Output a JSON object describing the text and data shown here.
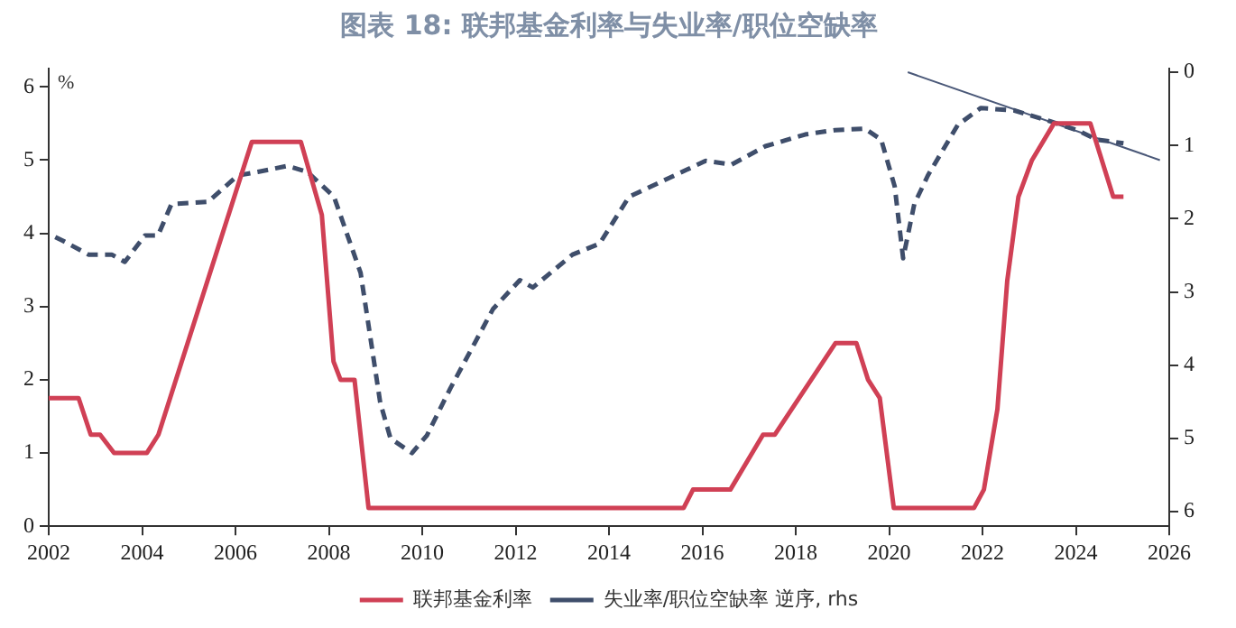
{
  "chart_data": {
    "type": "line",
    "title": "图表 18: 联邦基金利率与失业率/职位空缺率",
    "ylabel": "%",
    "xlim": [
      2002,
      2026
    ],
    "xticks": [
      2002,
      2004,
      2006,
      2008,
      2010,
      2012,
      2014,
      2016,
      2018,
      2020,
      2022,
      2024,
      2026
    ],
    "ylim": [
      0,
      6.25
    ],
    "yticks": [
      0,
      1,
      2,
      3,
      4,
      5,
      6
    ],
    "y2lim": [
      6.2,
      -0.05
    ],
    "y2ticks": [
      0,
      1,
      2,
      3,
      4,
      5,
      6
    ],
    "legend": "bottom",
    "series": [
      {
        "name": "联邦基金利率",
        "color": "#d04055",
        "line_style": "solid",
        "x": [
          2002.0,
          2002.64,
          2002.9,
          2003.1,
          2003.4,
          2004.1,
          2004.35,
          2006.35,
          2007.4,
          2007.85,
          2008.1,
          2008.25,
          2008.55,
          2008.85,
          2015.6,
          2015.8,
          2016.6,
          2017.3,
          2017.55,
          2018.85,
          2019.3,
          2019.55,
          2019.8,
          2020.1,
          2021.82,
          2022.03,
          2022.32,
          2022.53,
          2022.77,
          2023.06,
          2023.53,
          2024.31,
          2024.8,
          2025.02
        ],
        "values": [
          1.75,
          1.75,
          1.25,
          1.25,
          1.0,
          1.0,
          1.25,
          5.25,
          5.25,
          4.25,
          2.25,
          2.0,
          2.0,
          0.25,
          0.25,
          0.5,
          0.5,
          1.25,
          1.25,
          2.5,
          2.5,
          2.0,
          1.75,
          0.25,
          0.25,
          0.5,
          1.6,
          3.35,
          4.5,
          5.0,
          5.5,
          5.5,
          4.5,
          4.5
        ]
      },
      {
        "name": "失业率/职位空缺率 逆序, rhs",
        "color": "#3f4e6b",
        "line_style": "dashed",
        "axis": "y2",
        "x": [
          2002.14,
          2002.3,
          2002.85,
          2003.35,
          2003.63,
          2004.06,
          2004.34,
          2004.63,
          2005.41,
          2006.05,
          2006.48,
          2007.11,
          2007.54,
          2008.11,
          2008.68,
          2009.1,
          2009.32,
          2009.78,
          2010.1,
          2010.6,
          2011.52,
          2012.09,
          2012.37,
          2013.22,
          2013.8,
          2014.43,
          2015.07,
          2016.07,
          2016.63,
          2017.35,
          2018.2,
          2018.84,
          2019.48,
          2019.83,
          2020.12,
          2020.3,
          2020.54,
          2020.83,
          2021.47,
          2021.96,
          2022.67,
          2023.45,
          2024.02,
          2024.45,
          2025.02
        ],
        "values": [
          2.25,
          2.3,
          2.49,
          2.49,
          2.59,
          2.23,
          2.23,
          1.8,
          1.77,
          1.41,
          1.36,
          1.28,
          1.36,
          1.7,
          2.74,
          4.51,
          5.0,
          5.2,
          4.96,
          4.32,
          3.23,
          2.84,
          2.94,
          2.49,
          2.34,
          1.7,
          1.51,
          1.21,
          1.26,
          1.01,
          0.85,
          0.79,
          0.77,
          0.92,
          1.56,
          2.54,
          1.8,
          1.41,
          0.72,
          0.49,
          0.52,
          0.67,
          0.79,
          0.92,
          0.97
        ]
      },
      {
        "color": "#4a5878",
        "line_style": "solid",
        "axis": "y2",
        "x": [
          2020.4,
          2025.8
        ],
        "values": [
          0.0,
          1.2
        ]
      }
    ]
  }
}
